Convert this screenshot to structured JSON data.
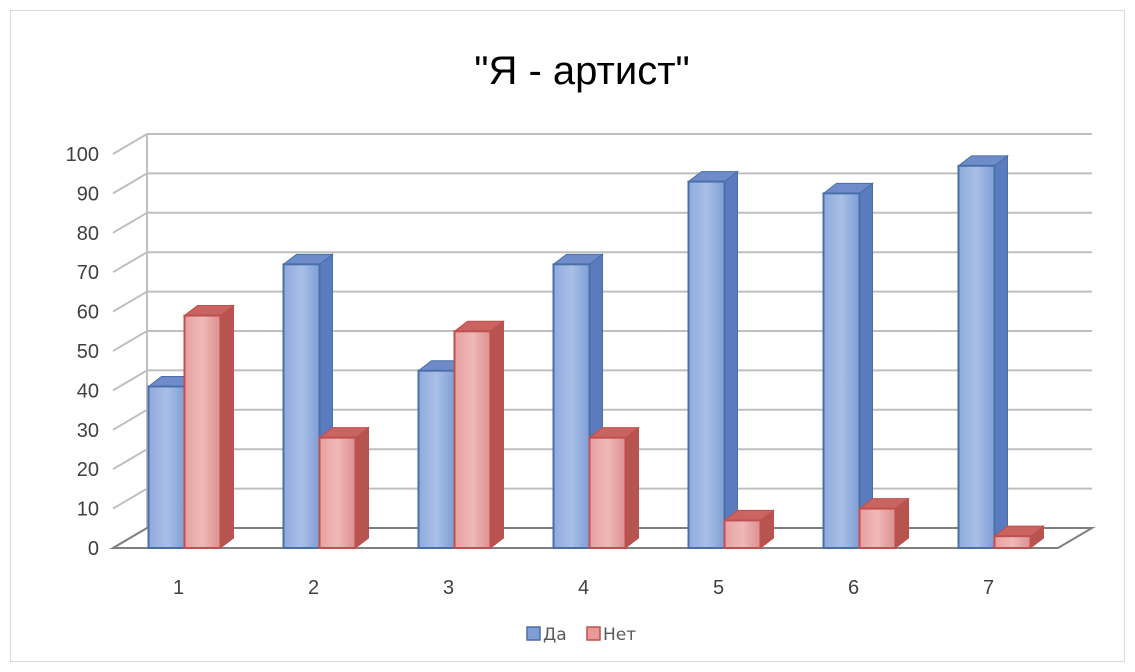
{
  "chart_data": {
    "type": "bar",
    "title": "\"Я - артист\"",
    "categories": [
      "1",
      "2",
      "3",
      "4",
      "5",
      "6",
      "7"
    ],
    "series": [
      {
        "name": "Да",
        "values": [
          41,
          72,
          45,
          72,
          93,
          90,
          97
        ],
        "color": "#7f9ed6",
        "edge": "#4a6fa8"
      },
      {
        "name": "Нет",
        "values": [
          59,
          28,
          55,
          28,
          7,
          10,
          3
        ],
        "color": "#e89a9a",
        "edge": "#c0504d"
      }
    ],
    "ylim": [
      0,
      100
    ],
    "yticks": [
      "0",
      "10",
      "20",
      "30",
      "40",
      "50",
      "60",
      "70",
      "80",
      "90",
      "100"
    ],
    "grid": true,
    "legend_position": "bottom",
    "style": "3d-clustered-column"
  }
}
